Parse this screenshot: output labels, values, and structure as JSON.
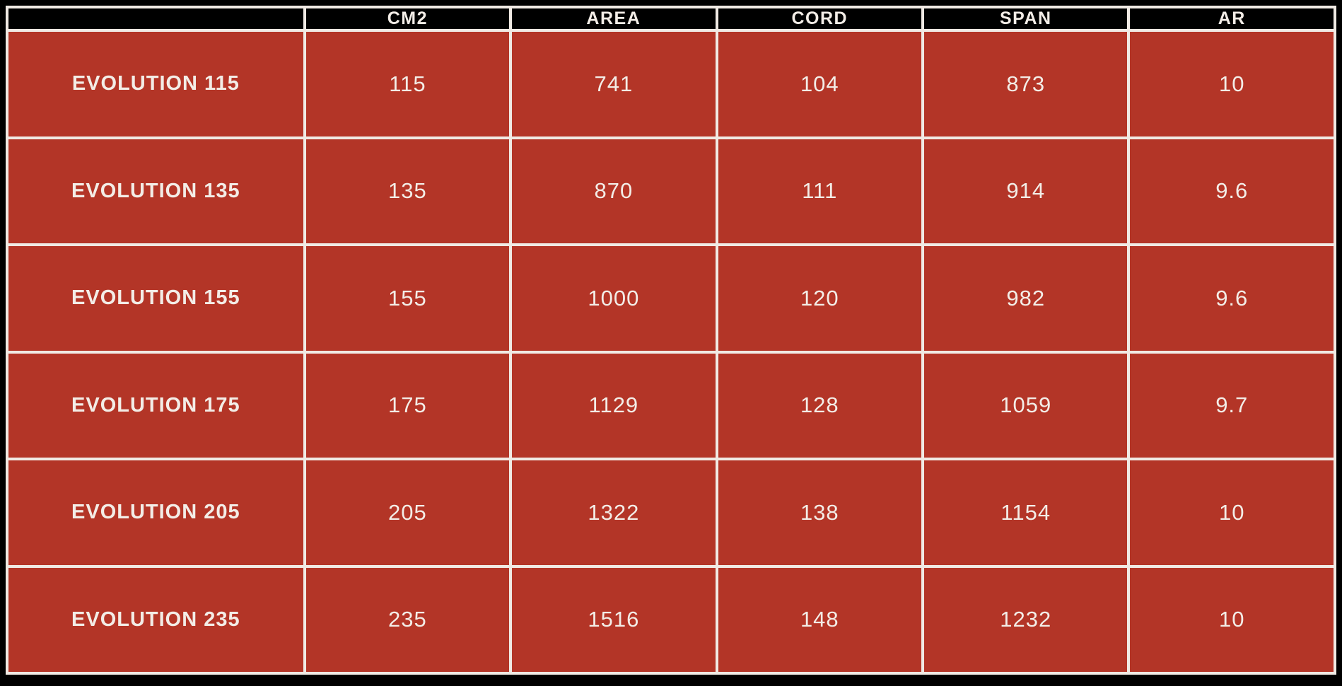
{
  "colors": {
    "background": "#000000",
    "header_bg": "#000000",
    "cell_bg": "#b33527",
    "gridline": "#f0eae4",
    "text": "#f3ede7"
  },
  "chart_data": {
    "type": "table",
    "title": "",
    "columns": [
      "",
      "CM2",
      "AREA",
      "CORD",
      "SPAN",
      "AR"
    ],
    "rows": [
      {
        "name": "EVOLUTION 115",
        "values": [
          "115",
          "741",
          "104",
          "873",
          "10"
        ]
      },
      {
        "name": "EVOLUTION 135",
        "values": [
          "135",
          "870",
          "111",
          "914",
          "9.6"
        ]
      },
      {
        "name": "EVOLUTION 155",
        "values": [
          "155",
          "1000",
          "120",
          "982",
          "9.6"
        ]
      },
      {
        "name": "EVOLUTION 175",
        "values": [
          "175",
          "1129",
          "128",
          "1059",
          "9.7"
        ]
      },
      {
        "name": "EVOLUTION 205",
        "values": [
          "205",
          "1322",
          "138",
          "1154",
          "10"
        ]
      },
      {
        "name": "EVOLUTION 235",
        "values": [
          "235",
          "1516",
          "148",
          "1232",
          "10"
        ]
      }
    ]
  }
}
